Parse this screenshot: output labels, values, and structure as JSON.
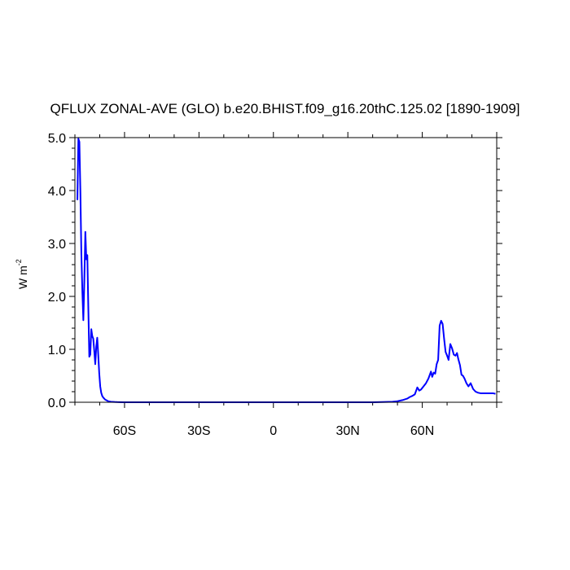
{
  "chart_data": {
    "type": "line",
    "title": "QFLUX ZONAL-AVE (GLO) b.e20.BHIST.f09_g16.20thC.125.02 [1890-1909]",
    "ylabel": "W m",
    "ylabel_exponent": "-2",
    "xlim": [
      -80,
      90
    ],
    "ylim": [
      0,
      5
    ],
    "xticks": [
      {
        "value": -60,
        "label": "60S"
      },
      {
        "value": -30,
        "label": "30S"
      },
      {
        "value": 0,
        "label": "0"
      },
      {
        "value": 30,
        "label": "30N"
      },
      {
        "value": 60,
        "label": "60N"
      }
    ],
    "yticks": [
      {
        "value": 0,
        "label": "0.0"
      },
      {
        "value": 1,
        "label": "1.0"
      },
      {
        "value": 2,
        "label": "2.0"
      },
      {
        "value": 3,
        "label": "3.0"
      },
      {
        "value": 4,
        "label": "4.0"
      },
      {
        "value": 5,
        "label": "5.0"
      }
    ],
    "grid": false,
    "series": [
      {
        "color": "#0000ff",
        "x": [
          -79,
          -78.6,
          -78.2,
          -77.8,
          -77.4,
          -77,
          -76.6,
          -76.2,
          -75.8,
          -75.4,
          -75,
          -74.6,
          -74.2,
          -73.8,
          -73.4,
          -73,
          -72.6,
          -72.2,
          -71.8,
          -71.4,
          -71,
          -70.6,
          -70.2,
          -69.8,
          -69.4,
          -69,
          -68.6,
          -68.2,
          -67.8,
          -67.4,
          -67,
          -66.6,
          -66.2,
          -65.5,
          -65,
          -64,
          -63,
          -62,
          -60,
          -55,
          -50,
          -40,
          -30,
          -20,
          -10,
          0,
          10,
          20,
          30,
          40,
          45,
          48,
          50,
          52,
          54,
          55,
          56,
          57,
          58,
          58.8,
          59.5,
          60.5,
          61.5,
          62.5,
          63.5,
          64,
          64.6,
          65.2,
          65.8,
          66.4,
          67,
          67.6,
          68.2,
          68.8,
          69.4,
          70,
          70.6,
          71.3,
          72,
          72.7,
          73.4,
          74,
          74.5,
          75.2,
          75.8,
          76.4,
          77,
          77.8,
          78.6,
          79.5,
          80.5,
          81.5,
          82.5,
          83.5,
          84.5,
          85.5,
          87,
          88.5,
          89.5
        ],
        "values": [
          3.82,
          4.98,
          4.92,
          4.0,
          2.8,
          2.1,
          1.55,
          2.3,
          3.22,
          2.7,
          2.78,
          1.8,
          0.86,
          0.9,
          1.38,
          1.25,
          1.2,
          0.97,
          0.72,
          1.05,
          1.22,
          0.9,
          0.55,
          0.3,
          0.18,
          0.12,
          0.09,
          0.07,
          0.05,
          0.04,
          0.03,
          0.02,
          0.015,
          0.01,
          0.008,
          0.005,
          0.003,
          0.002,
          0.001,
          0.0,
          0.0,
          0.0,
          0.0,
          0.0,
          0.0,
          0.0,
          0.0,
          0.0,
          0.0,
          0.0,
          0.005,
          0.01,
          0.02,
          0.04,
          0.07,
          0.1,
          0.12,
          0.15,
          0.28,
          0.22,
          0.24,
          0.3,
          0.36,
          0.45,
          0.58,
          0.48,
          0.56,
          0.54,
          0.72,
          0.8,
          1.45,
          1.54,
          1.48,
          1.2,
          0.95,
          0.88,
          0.8,
          1.1,
          1.02,
          0.9,
          0.88,
          0.93,
          0.82,
          0.7,
          0.52,
          0.5,
          0.45,
          0.36,
          0.3,
          0.36,
          0.25,
          0.2,
          0.18,
          0.17,
          0.17,
          0.17,
          0.17,
          0.17,
          0.16
        ]
      }
    ]
  }
}
